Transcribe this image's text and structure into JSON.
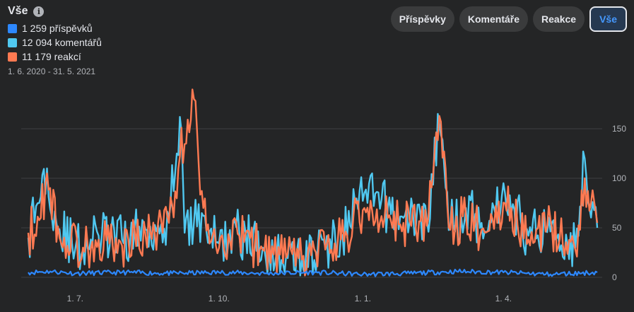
{
  "header": {
    "title": "Vše",
    "info_icon": "info-icon",
    "date_range": "1. 6. 2020 - 31. 5. 2021"
  },
  "legend": [
    {
      "label": "1 259 příspěvků",
      "color": "#2d88ff"
    },
    {
      "label": "12 094 komentářů",
      "color": "#50c8f0"
    },
    {
      "label": "11 179 reakcí",
      "color": "#ff7a52"
    }
  ],
  "tabs": [
    {
      "label": "Příspěvky",
      "active": false
    },
    {
      "label": "Komentáře",
      "active": false
    },
    {
      "label": "Reakce",
      "active": false
    },
    {
      "label": "Vše",
      "active": true
    }
  ],
  "colors": {
    "posts": "#2d88ff",
    "comments": "#50c8f0",
    "reactions": "#ff7a52",
    "grid": "#3e4042"
  },
  "chart_data": {
    "type": "line",
    "x_range": [
      "2020-06-01",
      "2021-05-31"
    ],
    "x_ticks": [
      "1. 7.",
      "1. 10.",
      "1. 1.",
      "1. 4."
    ],
    "x_tick_dates": [
      "2020-07-01",
      "2020-10-01",
      "2021-01-01",
      "2021-04-01"
    ],
    "y_ticks": [
      "0",
      "50",
      "100",
      "150"
    ],
    "ylim": [
      0,
      190
    ],
    "grid": true,
    "series": [
      {
        "name": "1 259 příspěvků",
        "color": "#2d88ff",
        "anchors": [
          [
            0,
            5
          ],
          [
            14,
            6
          ],
          [
            30,
            4
          ],
          [
            60,
            5
          ],
          [
            92,
            4
          ],
          [
            122,
            5
          ],
          [
            152,
            4
          ],
          [
            183,
            5
          ],
          [
            214,
            3
          ],
          [
            244,
            4
          ],
          [
            274,
            6
          ],
          [
            304,
            5
          ],
          [
            334,
            3
          ],
          [
            364,
            5
          ]
        ],
        "noise": 4,
        "seed": 11
      },
      {
        "name": "12 094 komentářů",
        "color": "#50c8f0",
        "anchors": [
          [
            0,
            40
          ],
          [
            5,
            72
          ],
          [
            12,
            110
          ],
          [
            18,
            55
          ],
          [
            30,
            28
          ],
          [
            45,
            42
          ],
          [
            60,
            38
          ],
          [
            75,
            48
          ],
          [
            90,
            60
          ],
          [
            97,
            162
          ],
          [
            100,
            45
          ],
          [
            112,
            62
          ],
          [
            120,
            35
          ],
          [
            135,
            45
          ],
          [
            150,
            30
          ],
          [
            165,
            22
          ],
          [
            175,
            18
          ],
          [
            190,
            30
          ],
          [
            200,
            42
          ],
          [
            215,
            85
          ],
          [
            230,
            70
          ],
          [
            240,
            60
          ],
          [
            255,
            58
          ],
          [
            263,
            155
          ],
          [
            270,
            52
          ],
          [
            280,
            70
          ],
          [
            290,
            55
          ],
          [
            305,
            85
          ],
          [
            320,
            42
          ],
          [
            335,
            55
          ],
          [
            350,
            30
          ],
          [
            356,
            120
          ],
          [
            364,
            50
          ]
        ],
        "noise": 26,
        "seed": 29
      },
      {
        "name": "11 179 reakcí",
        "color": "#ff7a52",
        "anchors": [
          [
            0,
            45
          ],
          [
            8,
            60
          ],
          [
            12,
            105
          ],
          [
            20,
            40
          ],
          [
            35,
            30
          ],
          [
            45,
            38
          ],
          [
            60,
            32
          ],
          [
            75,
            42
          ],
          [
            90,
            55
          ],
          [
            97,
            122
          ],
          [
            106,
            180
          ],
          [
            112,
            70
          ],
          [
            120,
            32
          ],
          [
            135,
            42
          ],
          [
            150,
            28
          ],
          [
            165,
            20
          ],
          [
            175,
            18
          ],
          [
            190,
            28
          ],
          [
            200,
            38
          ],
          [
            215,
            70
          ],
          [
            230,
            60
          ],
          [
            240,
            55
          ],
          [
            255,
            52
          ],
          [
            263,
            163
          ],
          [
            270,
            48
          ],
          [
            280,
            62
          ],
          [
            290,
            48
          ],
          [
            305,
            75
          ],
          [
            320,
            38
          ],
          [
            335,
            50
          ],
          [
            350,
            28
          ],
          [
            356,
            100
          ],
          [
            364,
            55
          ]
        ],
        "noise": 24,
        "seed": 53
      }
    ]
  }
}
